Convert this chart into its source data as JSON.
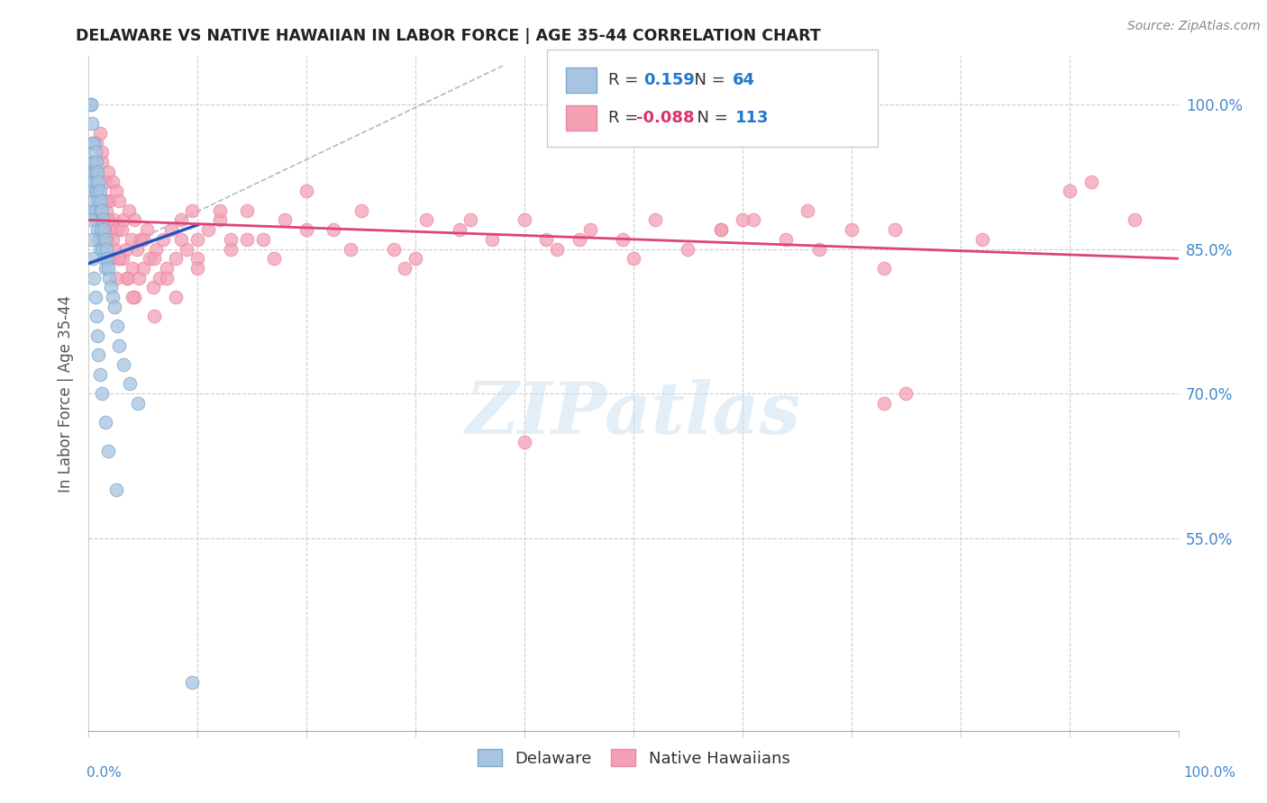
{
  "title": "DELAWARE VS NATIVE HAWAIIAN IN LABOR FORCE | AGE 35-44 CORRELATION CHART",
  "source": "Source: ZipAtlas.com",
  "ylabel": "In Labor Force | Age 35-44",
  "xlim": [
    0.0,
    1.0
  ],
  "ylim": [
    0.35,
    1.05
  ],
  "yticks": [
    0.55,
    0.7,
    0.85,
    1.0
  ],
  "ytick_labels": [
    "55.0%",
    "70.0%",
    "85.0%",
    "100.0%"
  ],
  "watermark": "ZIPatlas",
  "legend_blue_R": "0.159",
  "legend_blue_N": "64",
  "legend_pink_R": "-0.088",
  "legend_pink_N": "113",
  "blue_color": "#a8c4e0",
  "blue_edge_color": "#7aaace",
  "pink_color": "#f4a0b5",
  "pink_edge_color": "#e888a5",
  "blue_line_color": "#2255bb",
  "pink_line_color": "#dd4477",
  "ref_line_color": "#aabbcc",
  "grid_color": "#cccccc",
  "tick_label_color": "#4488cc",
  "title_color": "#222222",
  "source_color": "#888888",
  "ylabel_color": "#555555",
  "blue_scatter_x": [
    0.002,
    0.002,
    0.003,
    0.003,
    0.003,
    0.004,
    0.004,
    0.004,
    0.005,
    0.005,
    0.005,
    0.005,
    0.006,
    0.006,
    0.006,
    0.006,
    0.007,
    0.007,
    0.007,
    0.008,
    0.008,
    0.008,
    0.009,
    0.009,
    0.009,
    0.01,
    0.01,
    0.01,
    0.011,
    0.011,
    0.012,
    0.012,
    0.013,
    0.013,
    0.014,
    0.014,
    0.015,
    0.015,
    0.016,
    0.017,
    0.018,
    0.019,
    0.02,
    0.022,
    0.024,
    0.026,
    0.028,
    0.032,
    0.038,
    0.045,
    0.002,
    0.003,
    0.004,
    0.005,
    0.006,
    0.007,
    0.008,
    0.009,
    0.01,
    0.012,
    0.015,
    0.018,
    0.025,
    0.095
  ],
  "blue_scatter_y": [
    1.0,
    1.0,
    0.98,
    0.96,
    0.94,
    0.93,
    0.91,
    0.89,
    0.96,
    0.94,
    0.92,
    0.9,
    0.95,
    0.93,
    0.91,
    0.89,
    0.94,
    0.92,
    0.88,
    0.93,
    0.91,
    0.87,
    0.92,
    0.9,
    0.86,
    0.91,
    0.89,
    0.85,
    0.9,
    0.87,
    0.89,
    0.86,
    0.88,
    0.85,
    0.87,
    0.84,
    0.86,
    0.83,
    0.85,
    0.84,
    0.83,
    0.82,
    0.81,
    0.8,
    0.79,
    0.77,
    0.75,
    0.73,
    0.71,
    0.69,
    0.88,
    0.86,
    0.84,
    0.82,
    0.8,
    0.78,
    0.76,
    0.74,
    0.72,
    0.7,
    0.67,
    0.64,
    0.6,
    0.4
  ],
  "pink_scatter_x": [
    0.005,
    0.007,
    0.008,
    0.01,
    0.01,
    0.012,
    0.013,
    0.014,
    0.015,
    0.016,
    0.017,
    0.018,
    0.019,
    0.02,
    0.02,
    0.022,
    0.023,
    0.024,
    0.025,
    0.026,
    0.027,
    0.028,
    0.03,
    0.031,
    0.032,
    0.034,
    0.035,
    0.037,
    0.039,
    0.04,
    0.042,
    0.044,
    0.046,
    0.048,
    0.05,
    0.053,
    0.056,
    0.059,
    0.062,
    0.065,
    0.068,
    0.072,
    0.076,
    0.08,
    0.085,
    0.09,
    0.095,
    0.1,
    0.11,
    0.12,
    0.13,
    0.145,
    0.16,
    0.18,
    0.2,
    0.225,
    0.25,
    0.28,
    0.31,
    0.34,
    0.37,
    0.4,
    0.43,
    0.46,
    0.49,
    0.52,
    0.55,
    0.58,
    0.61,
    0.64,
    0.67,
    0.7,
    0.73,
    0.012,
    0.015,
    0.018,
    0.022,
    0.028,
    0.035,
    0.042,
    0.05,
    0.06,
    0.072,
    0.085,
    0.1,
    0.12,
    0.145,
    0.17,
    0.2,
    0.24,
    0.29,
    0.35,
    0.42,
    0.5,
    0.58,
    0.66,
    0.74,
    0.82,
    0.9,
    0.96,
    0.025,
    0.04,
    0.06,
    0.08,
    0.1,
    0.13,
    0.4,
    0.73,
    0.92,
    0.75,
    0.6,
    0.45,
    0.3
  ],
  "pink_scatter_y": [
    0.93,
    0.96,
    0.91,
    0.97,
    0.88,
    0.94,
    0.9,
    0.87,
    0.92,
    0.89,
    0.86,
    0.93,
    0.9,
    0.87,
    0.84,
    0.92,
    0.88,
    0.85,
    0.91,
    0.87,
    0.84,
    0.9,
    0.87,
    0.84,
    0.88,
    0.85,
    0.82,
    0.89,
    0.86,
    0.83,
    0.88,
    0.85,
    0.82,
    0.86,
    0.83,
    0.87,
    0.84,
    0.81,
    0.85,
    0.82,
    0.86,
    0.83,
    0.87,
    0.84,
    0.88,
    0.85,
    0.89,
    0.86,
    0.87,
    0.88,
    0.85,
    0.89,
    0.86,
    0.88,
    0.91,
    0.87,
    0.89,
    0.85,
    0.88,
    0.87,
    0.86,
    0.88,
    0.85,
    0.87,
    0.86,
    0.88,
    0.85,
    0.87,
    0.88,
    0.86,
    0.85,
    0.87,
    0.83,
    0.95,
    0.9,
    0.88,
    0.86,
    0.84,
    0.82,
    0.8,
    0.86,
    0.84,
    0.82,
    0.86,
    0.84,
    0.89,
    0.86,
    0.84,
    0.87,
    0.85,
    0.83,
    0.88,
    0.86,
    0.84,
    0.87,
    0.89,
    0.87,
    0.86,
    0.91,
    0.88,
    0.82,
    0.8,
    0.78,
    0.8,
    0.83,
    0.86,
    0.65,
    0.69,
    0.92,
    0.7,
    0.88,
    0.86,
    0.84
  ],
  "blue_line_x": [
    0.0,
    0.1
  ],
  "blue_line_y": [
    0.835,
    0.875
  ],
  "pink_line_x": [
    0.0,
    1.0
  ],
  "pink_line_y": [
    0.88,
    0.84
  ],
  "ref_line_x": [
    0.0,
    0.38
  ],
  "ref_line_y": [
    0.835,
    1.04
  ]
}
